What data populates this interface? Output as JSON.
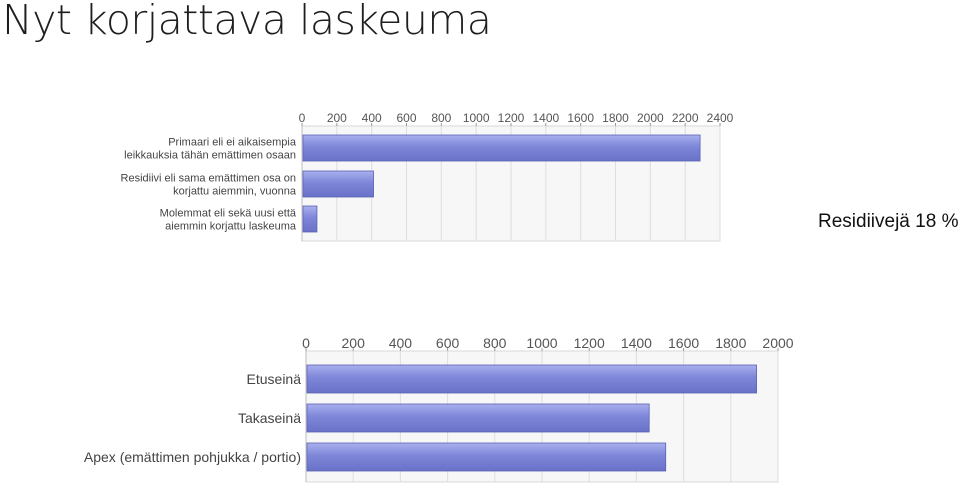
{
  "slide": {
    "title": "Nyt korjattava laskeuma",
    "note": "Residiivejä 18 %"
  },
  "chart_data": [
    {
      "type": "bar",
      "orientation": "horizontal",
      "categories": [
        [
          "Primaari eli ei aikaisempia",
          "leikkauksia tähän emättimen osaan"
        ],
        [
          "Residiivi eli sama emättimen osa on",
          "korjattu aiemmin, vuonna"
        ],
        [
          "Molemmat eli sekä uusi että",
          "aiemmin korjattu laskeuma"
        ]
      ],
      "values": [
        2280,
        405,
        80
      ],
      "xlim": [
        0,
        2400
      ],
      "xticks": [
        "0",
        "200",
        "400",
        "600",
        "800",
        "1000",
        "1200",
        "1400",
        "1600",
        "1800",
        "2000",
        "2200",
        "2400"
      ],
      "grid": true,
      "legend": "none",
      "bar_color": "#7d86d8"
    },
    {
      "type": "bar",
      "orientation": "horizontal",
      "categories": [
        [
          "Etuseinä"
        ],
        [
          "Takaseinä"
        ],
        [
          "Apex (emättimen pohjukka / portio)"
        ]
      ],
      "values": [
        1905,
        1450,
        1520
      ],
      "xlim": [
        0,
        2000
      ],
      "xticks": [
        "0",
        "200",
        "400",
        "600",
        "800",
        "1000",
        "1200",
        "1400",
        "1600",
        "1800",
        "2000"
      ],
      "grid": true,
      "legend": "none",
      "bar_color": "#7d86d8"
    }
  ]
}
